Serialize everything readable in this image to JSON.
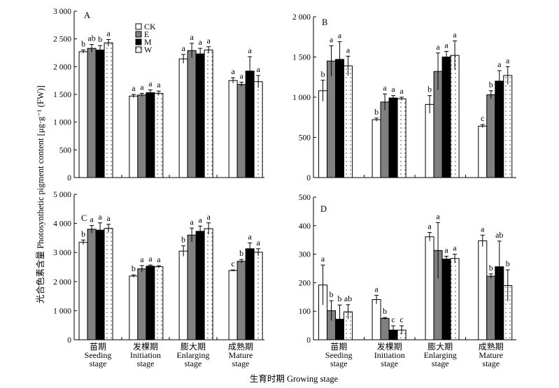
{
  "figure": {
    "ylabel": "光合色素含量 Photosynthetic pigment content [μg·g⁻¹ (FW)]",
    "xlabel": "生育时期 Growing stage",
    "categories": [
      [
        "苗期",
        "Seeding",
        "stage"
      ],
      [
        "发棵期",
        "Initiation",
        "stage"
      ],
      [
        "膨大期",
        "Enlarging",
        "stage"
      ],
      [
        "成熟期",
        "Mature",
        "stage"
      ]
    ]
  },
  "legend": [
    {
      "name": "CK",
      "fill": "white"
    },
    {
      "name": "E",
      "fill": "gray"
    },
    {
      "name": "M",
      "fill": "black"
    },
    {
      "name": "W",
      "fill": "dotted"
    }
  ],
  "chart_data": [
    {
      "type": "bar",
      "panel": "A",
      "ylim": [
        0,
        3000
      ],
      "yticks": [
        "0",
        "500",
        "1 000",
        "1 500",
        "2 000",
        "2 500",
        "3 000"
      ],
      "categories": [
        "苗期 Seeding stage",
        "发棵期 Initiation stage",
        "膨大期 Enlarging stage",
        "成熟期 Mature stage"
      ],
      "series": [
        {
          "name": "CK",
          "values": [
            2270,
            1470,
            2140,
            1750
          ],
          "errors": [
            30,
            30,
            80,
            50
          ],
          "letters": [
            "b",
            "a",
            "a",
            "a"
          ]
        },
        {
          "name": "E",
          "values": [
            2330,
            1490,
            2290,
            1680
          ],
          "errors": [
            70,
            30,
            130,
            40
          ],
          "letters": [
            "ab",
            "a",
            "a",
            "a"
          ]
        },
        {
          "name": "M",
          "values": [
            2300,
            1530,
            2230,
            1920
          ],
          "errors": [
            80,
            50,
            100,
            260
          ],
          "letters": [
            "b",
            "a",
            "a",
            "a"
          ]
        },
        {
          "name": "W",
          "values": [
            2430,
            1520,
            2300,
            1730
          ],
          "errors": [
            60,
            40,
            60,
            110
          ],
          "letters": [
            "a",
            "a",
            "a",
            "a"
          ]
        }
      ]
    },
    {
      "type": "bar",
      "panel": "B",
      "ylim": [
        0,
        2000
      ],
      "yticks": [
        "0",
        "500",
        "1 000",
        "1 500",
        "2 000"
      ],
      "categories": [
        "苗期 Seeding stage",
        "发棵期 Initiation stage",
        "膨大期 Enlarging stage",
        "成熟期 Mature stage"
      ],
      "series": [
        {
          "name": "CK",
          "values": [
            1080,
            720,
            910,
            640
          ],
          "errors": [
            130,
            20,
            110,
            20
          ],
          "letters": [
            "b",
            "b",
            "b",
            "c"
          ]
        },
        {
          "name": "E",
          "values": [
            1450,
            940,
            1320,
            1030
          ],
          "errors": [
            190,
            100,
            230,
            50
          ],
          "letters": [
            "a",
            "a",
            "a",
            "b"
          ]
        },
        {
          "name": "M",
          "values": [
            1470,
            990,
            1500,
            1200
          ],
          "errors": [
            220,
            30,
            70,
            130
          ],
          "letters": [
            "a",
            "a",
            "a",
            "a"
          ]
        },
        {
          "name": "W",
          "values": [
            1390,
            980,
            1520,
            1270
          ],
          "errors": [
            120,
            20,
            180,
            110
          ],
          "letters": [
            "a",
            "a",
            "a",
            "a"
          ]
        }
      ]
    },
    {
      "type": "bar",
      "panel": "C",
      "ylim": [
        0,
        5000
      ],
      "yticks": [
        "0",
        "1 000",
        "2 000",
        "3 000",
        "4 000",
        "5 000"
      ],
      "categories": [
        "苗期 Seeding stage",
        "发棵期 Initiation stage",
        "膨大期 Enlarging stage",
        "成熟期 Mature stage"
      ],
      "series": [
        {
          "name": "CK",
          "values": [
            3350,
            2190,
            3050,
            2380
          ],
          "errors": [
            80,
            40,
            180,
            20
          ],
          "letters": [
            "b",
            "b",
            "b",
            "c"
          ]
        },
        {
          "name": "E",
          "values": [
            3800,
            2440,
            3600,
            2700
          ],
          "errors": [
            130,
            110,
            240,
            60
          ],
          "letters": [
            "a",
            "a",
            "a",
            "b"
          ]
        },
        {
          "name": "M",
          "values": [
            3770,
            2530,
            3730,
            3130
          ],
          "errors": [
            250,
            40,
            180,
            200
          ],
          "letters": [
            "a",
            "a",
            "a",
            "a"
          ]
        },
        {
          "name": "W",
          "values": [
            3830,
            2510,
            3820,
            3010
          ],
          "errors": [
            140,
            40,
            200,
            120
          ],
          "letters": [
            "a",
            "a",
            "a",
            "a"
          ]
        }
      ]
    },
    {
      "type": "bar",
      "panel": "D",
      "ylim": [
        0,
        500
      ],
      "yticks": [
        "0",
        "100",
        "200",
        "300",
        "400",
        "500"
      ],
      "categories": [
        "苗期 Seeding stage",
        "发棵期 Initiation stage",
        "膨大期 Enlarging stage",
        "成熟期 Mature stage"
      ],
      "series": [
        {
          "name": "CK",
          "values": [
            192,
            141,
            361,
            347
          ],
          "errors": [
            70,
            15,
            15,
            20
          ],
          "letters": [
            "a",
            "a",
            "a",
            "a"
          ]
        },
        {
          "name": "E",
          "values": [
            102,
            75,
            313,
            223
          ],
          "errors": [
            35,
            3,
            98,
            8
          ],
          "letters": [
            "b",
            "b",
            "a",
            "b"
          ]
        },
        {
          "name": "M",
          "values": [
            72,
            34,
            283,
            256
          ],
          "errors": [
            50,
            15,
            10,
            90
          ],
          "letters": [
            "b",
            "c",
            "a",
            "ab"
          ]
        },
        {
          "name": "W",
          "values": [
            98,
            34,
            285,
            190
          ],
          "errors": [
            25,
            15,
            15,
            55
          ],
          "letters": [
            "ab",
            "c",
            "a",
            "b"
          ]
        }
      ]
    }
  ]
}
